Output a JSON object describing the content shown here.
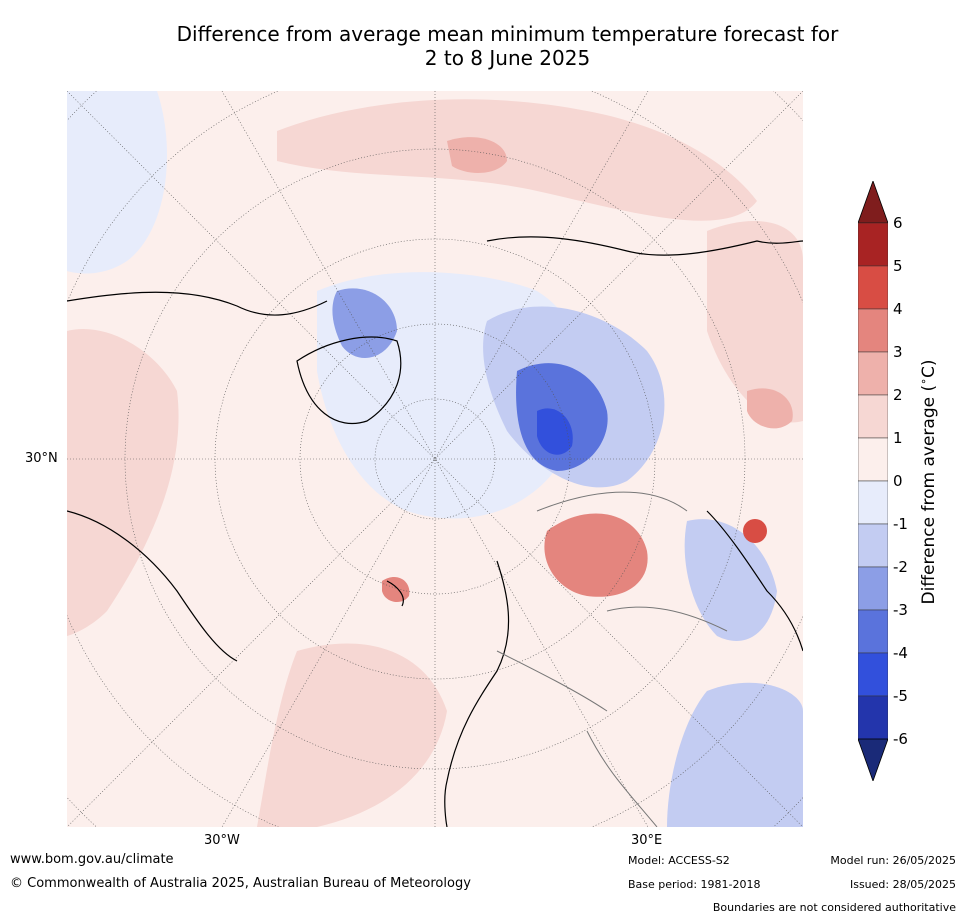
{
  "title_line1": "Difference from average mean minimum temperature forecast for",
  "title_line2": "2 to 8 June 2025",
  "ticks": {
    "lat30": "30°N",
    "lon30w": "30°W",
    "lon30e": "30°E"
  },
  "colorbar": {
    "label": "Difference from average (°C)",
    "label_main": "Difference from average (",
    "label_unit_sup": "∘",
    "label_unit_end": "C)",
    "ticks": [
      "6",
      "5",
      "4",
      "3",
      "2",
      "1",
      "0",
      "-1",
      "-2",
      "-3",
      "-4",
      "-5",
      "-6"
    ],
    "colors": [
      "#7f1d1d",
      "#a82323",
      "#d84d44",
      "#e4857e",
      "#eeb1ab",
      "#f6d7d3",
      "#fcefec",
      "#e7ecfb",
      "#c3ccf2",
      "#8c9ee6",
      "#5a73dc",
      "#3250dc",
      "#2335ac",
      "#1a2a78"
    ]
  },
  "footer": {
    "website": "www.bom.gov.au/climate",
    "copyright": "© Commonwealth of Australia 2025, Australian Bureau of Meteorology",
    "model": "Model: ACCESS-S2",
    "base_period": "Base period: 1981-2018",
    "model_run": "Model run: 26/05/2025",
    "issued": "Issued: 28/05/2025",
    "disclaimer": "Boundaries are not considered authoritative"
  }
}
